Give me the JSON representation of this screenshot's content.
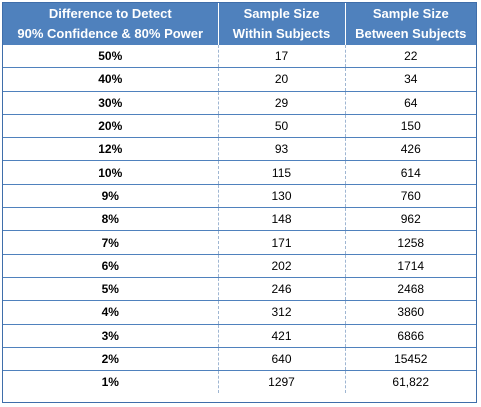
{
  "table": {
    "headers": [
      {
        "line1": "Difference to Detect",
        "line2": "90% Confidence & 80% Power"
      },
      {
        "line1": "Sample Size",
        "line2": "Within Subjects"
      },
      {
        "line1": "Sample Size",
        "line2": "Between Subjects"
      }
    ],
    "rows": [
      {
        "difference": "50%",
        "within": "17",
        "between": "22"
      },
      {
        "difference": "40%",
        "within": "20",
        "between": "34"
      },
      {
        "difference": "30%",
        "within": "29",
        "between": "64"
      },
      {
        "difference": "20%",
        "within": "50",
        "between": "150"
      },
      {
        "difference": "12%",
        "within": "93",
        "between": "426"
      },
      {
        "difference": "10%",
        "within": "115",
        "between": "614"
      },
      {
        "difference": "9%",
        "within": "130",
        "between": "760"
      },
      {
        "difference": "8%",
        "within": "148",
        "between": "962"
      },
      {
        "difference": "7%",
        "within": "171",
        "between": "1258"
      },
      {
        "difference": "6%",
        "within": "202",
        "between": "1714"
      },
      {
        "difference": "5%",
        "within": "246",
        "between": "2468"
      },
      {
        "difference": "4%",
        "within": "312",
        "between": "3860"
      },
      {
        "difference": "3%",
        "within": "421",
        "between": "6866"
      },
      {
        "difference": "2%",
        "within": "640",
        "between": "15452"
      },
      {
        "difference": "1%",
        "within": "1297",
        "between": "61,822"
      }
    ]
  }
}
